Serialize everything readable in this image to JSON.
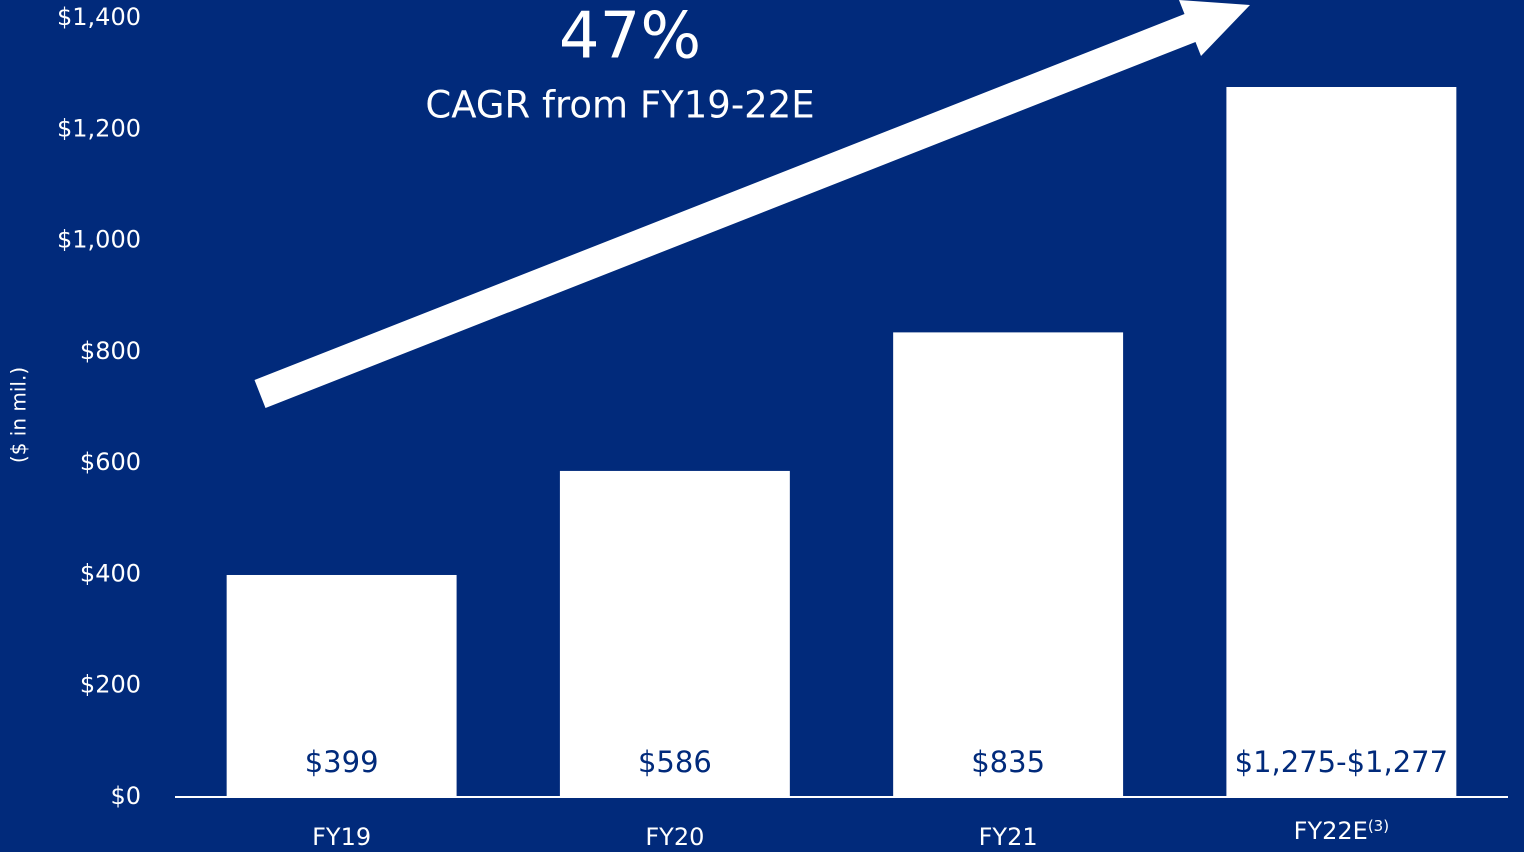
{
  "chart_data": {
    "type": "bar",
    "annotation_value": "47%",
    "annotation_text": "CAGR from FY19-22E",
    "y_axis_label": "($ in mil.)",
    "categories": [
      "FY19",
      "FY20",
      "FY21",
      "FY22E"
    ],
    "category_notes": [
      null,
      null,
      null,
      "(3)"
    ],
    "values": [
      399,
      586,
      835,
      1276
    ],
    "value_labels": [
      "$399",
      "$586",
      "$835",
      "$1,275-$1,277"
    ],
    "color": "#ffffff",
    "ylim": [
      0,
      1400
    ],
    "yticks": [
      {
        "value": 0,
        "label": "$0"
      },
      {
        "value": 200,
        "label": "$200"
      },
      {
        "value": 400,
        "label": "$400"
      },
      {
        "value": 600,
        "label": "$600"
      },
      {
        "value": 800,
        "label": "$800"
      },
      {
        "value": 1000,
        "label": "$1,000"
      },
      {
        "value": 1200,
        "label": "$1,200"
      },
      {
        "value": 1400,
        "label": "$1,400"
      }
    ],
    "grid": false
  }
}
